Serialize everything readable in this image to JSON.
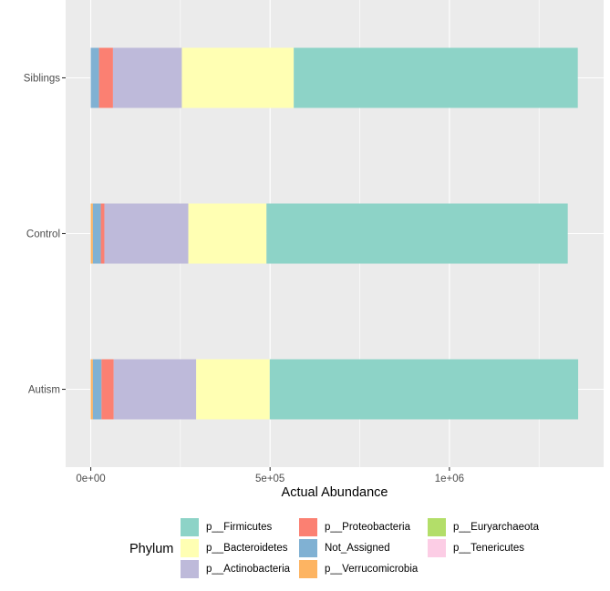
{
  "chart_data": {
    "type": "bar",
    "orientation": "horizontal",
    "stacked": true,
    "categories": [
      "Autism",
      "Control",
      "Siblings"
    ],
    "xlabel": "Actual Abundance",
    "ylabel": "",
    "xlim": [
      -70000,
      1430000
    ],
    "x_ticks": [
      {
        "value": 0,
        "label": "0e+00"
      },
      {
        "value": 500000,
        "label": "5e+05"
      },
      {
        "value": 1000000,
        "label": "1e+06"
      }
    ],
    "grid": true,
    "panel_background": "#ebebeb",
    "grid_color": "#ffffff",
    "legend_position": "bottom",
    "legend_title": "Phylum",
    "series": [
      {
        "name": "p__Verrucomicrobia",
        "color": "#fdb462",
        "values": [
          6000,
          6000,
          0
        ]
      },
      {
        "name": "Not_Assigned",
        "color": "#80b1d3",
        "values": [
          24000,
          22000,
          23000
        ]
      },
      {
        "name": "p__Proteobacteria",
        "color": "#fb8072",
        "values": [
          34000,
          10000,
          39000
        ]
      },
      {
        "name": "p__Actinobacteria",
        "color": "#bebada",
        "values": [
          230000,
          234000,
          192000
        ]
      },
      {
        "name": "p__Bacteroidetes",
        "color": "#ffffb3",
        "values": [
          205000,
          218000,
          312000
        ]
      },
      {
        "name": "p__Firmicutes",
        "color": "#8dd3c7",
        "values": [
          860000,
          840000,
          792000
        ]
      },
      {
        "name": "p__Euryarchaeota",
        "color": "#b3de69",
        "values": [
          0,
          0,
          0
        ]
      },
      {
        "name": "p__Tenericutes",
        "color": "#fccde5",
        "values": [
          0,
          0,
          0
        ]
      }
    ],
    "legend_entries": [
      {
        "label": "p__Firmicutes",
        "color": "#8dd3c7"
      },
      {
        "label": "p__Bacteroidetes",
        "color": "#ffffb3"
      },
      {
        "label": "p__Actinobacteria",
        "color": "#bebada"
      },
      {
        "label": "p__Proteobacteria",
        "color": "#fb8072"
      },
      {
        "label": "Not_Assigned",
        "color": "#80b1d3"
      },
      {
        "label": "p__Verrucomicrobia",
        "color": "#fdb462"
      },
      {
        "label": "p__Euryarchaeota",
        "color": "#b3de69"
      },
      {
        "label": "p__Tenericutes",
        "color": "#fccde5"
      }
    ]
  }
}
